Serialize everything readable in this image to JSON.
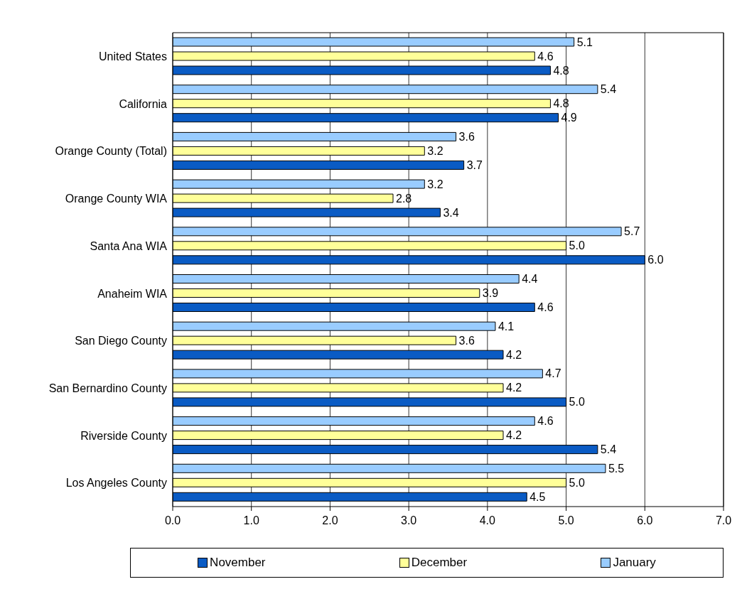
{
  "chart_data": {
    "type": "bar",
    "orientation": "horizontal",
    "categories": [
      "United States",
      "California",
      "Orange County (Total)",
      "Orange County WIA",
      "Santa Ana WIA",
      "Anaheim WIA",
      "San Diego County",
      "San Bernardino County",
      "Riverside County",
      "Los Angeles County"
    ],
    "series": [
      {
        "name": "November",
        "color": "#0a5bc4",
        "values": [
          4.8,
          4.9,
          3.7,
          3.4,
          6.0,
          4.6,
          4.2,
          5.0,
          5.4,
          4.5
        ],
        "value_labels": [
          "4.8",
          "4.9",
          "3.7",
          "3.4",
          "6.0",
          "4.6",
          "4.2",
          "5.0",
          "5.4",
          "4.5"
        ]
      },
      {
        "name": "December",
        "color": "#ffff99",
        "values": [
          4.6,
          4.8,
          3.2,
          2.8,
          5.0,
          3.9,
          3.6,
          4.2,
          4.2,
          5.0
        ],
        "value_labels": [
          "4.6",
          "4.8",
          "3.2",
          "2.8",
          "5.0",
          "3.9",
          "3.6",
          "4.2",
          "4.2",
          "5.0"
        ]
      },
      {
        "name": "January",
        "color": "#99ccff",
        "values": [
          5.1,
          5.4,
          3.6,
          3.2,
          5.7,
          4.4,
          4.1,
          4.7,
          4.6,
          5.5
        ],
        "value_labels": [
          "5.1",
          "5.4",
          "3.6",
          "3.2",
          "5.7",
          "4.4",
          "4.1",
          "4.7",
          "4.6",
          "5.5"
        ]
      }
    ],
    "xlim": [
      0,
      7
    ],
    "xticks": [
      {
        "value": 0,
        "label": "0.0"
      },
      {
        "value": 1,
        "label": "1.0"
      },
      {
        "value": 2,
        "label": "2.0"
      },
      {
        "value": 3,
        "label": "3.0"
      },
      {
        "value": 4,
        "label": "4.0"
      },
      {
        "value": 5,
        "label": "5.0"
      },
      {
        "value": 6,
        "label": "6.0"
      },
      {
        "value": 7,
        "label": "7.0"
      }
    ],
    "grid": "x",
    "legend": "bottom"
  }
}
